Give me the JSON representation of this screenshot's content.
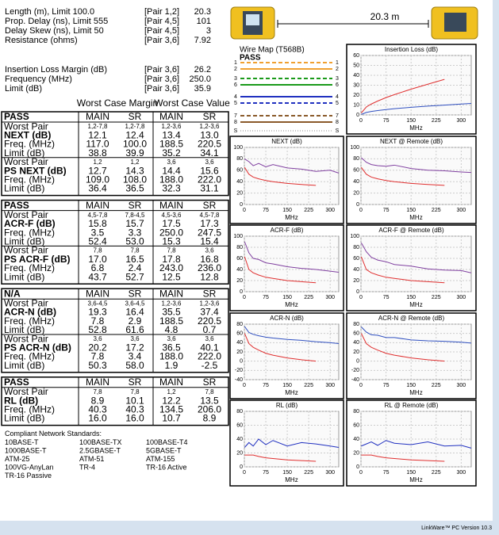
{
  "summary": {
    "rows": [
      [
        "Length (m), Limit 100.0",
        "[Pair 1,2]",
        "20.3"
      ],
      [
        "Prop. Delay (ns), Limit 555",
        "[Pair 4,5]",
        "101"
      ],
      [
        "Delay Skew (ns), Limit 50",
        "[Pair 4,5]",
        "3"
      ],
      [
        "Resistance (ohms)",
        "[Pair 3,6]",
        "7.92"
      ]
    ],
    "rows2": [
      [
        "Insertion Loss Margin (dB)",
        "[Pair 3,6]",
        "26.2"
      ],
      [
        "Frequency (MHz)",
        "[Pair 3,6]",
        "250.0"
      ],
      [
        "Limit (dB)",
        "[Pair 3,6]",
        "35.9"
      ]
    ]
  },
  "column_headers": [
    "Worst Case Margin",
    "Worst Case Value"
  ],
  "tables": [
    {
      "status": "PASS",
      "columns": [
        "MAIN",
        "SR",
        "MAIN",
        "SR"
      ],
      "groups": [
        [
          [
            "Worst Pair",
            "1,2-7,8",
            "1,2-7,8",
            "1,2-3,6",
            "1,2-3,6"
          ],
          [
            "NEXT (dB)",
            "12.1",
            "12.4",
            "13.4",
            "13.0"
          ],
          [
            "Freq. (MHz)",
            "117.0",
            "100.0",
            "188.5",
            "220.5"
          ],
          [
            "Limit (dB)",
            "38.8",
            "39.9",
            "35.2",
            "34.1"
          ]
        ],
        [
          [
            "Worst Pair",
            "1,2",
            "1,2",
            "3,6",
            "3,6"
          ],
          [
            "PS NEXT (dB)",
            "12.7",
            "14.3",
            "14.4",
            "15.6"
          ],
          [
            "Freq. (MHz)",
            "109.0",
            "108.0",
            "188.0",
            "222.0"
          ],
          [
            "Limit (dB)",
            "36.4",
            "36.5",
            "32.3",
            "31.1"
          ]
        ]
      ]
    },
    {
      "status": "PASS",
      "columns": [
        "MAIN",
        "SR",
        "MAIN",
        "SR"
      ],
      "groups": [
        [
          [
            "Worst Pair",
            "4,5-7,8",
            "7,8-4,5",
            "4,5-3,6",
            "4,5-7,8"
          ],
          [
            "ACR-F (dB)",
            "15.8",
            "15.7",
            "17.5",
            "17.3"
          ],
          [
            "Freq. (MHz)",
            "3.5",
            "3.3",
            "250.0",
            "247.5"
          ],
          [
            "Limit (dB)",
            "52.4",
            "53.0",
            "15.3",
            "15.4"
          ]
        ],
        [
          [
            "Worst Pair",
            "7,8",
            "7,8",
            "7,8",
            "3,6"
          ],
          [
            "PS ACR-F (dB)",
            "17.0",
            "16.5",
            "17.8",
            "16.8"
          ],
          [
            "Freq. (MHz)",
            "6.8",
            "2.4",
            "243.0",
            "236.0"
          ],
          [
            "Limit (dB)",
            "43.7",
            "52.7",
            "12.5",
            "12.8"
          ]
        ]
      ]
    },
    {
      "status": "N/A",
      "columns": [
        "MAIN",
        "SR",
        "MAIN",
        "SR"
      ],
      "groups": [
        [
          [
            "Worst Pair",
            "3,6-4,5",
            "3,6-4,5",
            "1,2-3,6",
            "1,2-3,6"
          ],
          [
            "ACR-N (dB)",
            "19.3",
            "16.4",
            "35.5",
            "37.4"
          ],
          [
            "Freq. (MHz)",
            "7.8",
            "2.9",
            "188.5",
            "220.5"
          ],
          [
            "Limit (dB)",
            "52.8",
            "61.6",
            "4.8",
            "0.7"
          ]
        ],
        [
          [
            "Worst Pair",
            "3,6",
            "3,6",
            "3,6",
            "3,6"
          ],
          [
            "PS ACR-N (dB)",
            "20.2",
            "17.2",
            "36.5",
            "40.1"
          ],
          [
            "Freq. (MHz)",
            "7.8",
            "3.4",
            "188.0",
            "222.0"
          ],
          [
            "Limit (dB)",
            "50.3",
            "58.0",
            "1.9",
            "-2.5"
          ]
        ]
      ]
    },
    {
      "status": "PASS",
      "columns": [
        "MAIN",
        "SR",
        "MAIN",
        "SR"
      ],
      "groups": [
        [
          [
            "Worst Pair",
            "7,8",
            "7,8",
            "1,2",
            "7,8"
          ],
          [
            "RL (dB)",
            "8.9",
            "10.1",
            "12.2",
            "13.5"
          ],
          [
            "Freq. (MHz)",
            "40.3",
            "40.3",
            "134.5",
            "206.0"
          ],
          [
            "Limit (dB)",
            "16.0",
            "16.0",
            "10.7",
            "8.9"
          ]
        ]
      ]
    }
  ],
  "standards": {
    "title": "Compliant Network Standards:",
    "items": [
      "10BASE-T",
      "100BASE-TX",
      "100BASE-T4",
      "1000BASE-T",
      "2.5GBASE-T",
      "5GBASE-T",
      "ATM-25",
      "ATM-51",
      "ATM-155",
      "100VG-AnyLan",
      "TR-4",
      "TR-16 Active",
      "TR-16 Passive"
    ]
  },
  "link": {
    "length": "20.3 m"
  },
  "wire_map": {
    "title": "Wire Map (T568B)",
    "status": "PASS",
    "pins": [
      {
        "left": "1",
        "right": "1",
        "color": "#f0a030",
        "dashed": true
      },
      {
        "left": "2",
        "right": "2",
        "color": "#f0a030",
        "dashed": false
      },
      {
        "left": "3",
        "right": "3",
        "color": "#1a9a1a",
        "dashed": true
      },
      {
        "left": "6",
        "right": "6",
        "color": "#1a9a1a",
        "dashed": false
      },
      {
        "left": "4",
        "right": "4",
        "color": "#2030c0",
        "dashed": false
      },
      {
        "left": "5",
        "right": "5",
        "color": "#2030c0",
        "dashed": true
      },
      {
        "left": "7",
        "right": "7",
        "color": "#8a5a2a",
        "dashed": true
      },
      {
        "left": "8",
        "right": "8",
        "color": "#8a5a2a",
        "dashed": false
      }
    ],
    "shield": [
      "S",
      "S"
    ]
  },
  "charts": [
    {
      "type": "line",
      "title": "Insertion Loss (dB)",
      "xlabel": "MHz",
      "xlim": [
        0,
        330
      ],
      "ylim": [
        0,
        60
      ],
      "xticks": [
        0,
        75,
        150,
        225,
        300
      ],
      "yticks": [
        0,
        10,
        20,
        30,
        40,
        50,
        60
      ],
      "x": [
        1,
        16,
        31,
        50,
        75,
        100,
        150,
        200,
        250,
        300,
        330
      ],
      "series": [
        {
          "color": "#e03030",
          "values": [
            2,
            8,
            11,
            14,
            17.5,
            20.5,
            26,
            31,
            35.9,
            null,
            null
          ]
        },
        {
          "color": "#3050c0",
          "values": [
            0.5,
            2.5,
            3.5,
            4.4,
            5.4,
            6.3,
            7.7,
            8.9,
            9.9,
            11,
            11.6
          ]
        }
      ]
    },
    {
      "type": "line",
      "title": "NEXT (dB)",
      "xlabel": "MHz",
      "xlim": [
        0,
        330
      ],
      "ylim": [
        0,
        100
      ],
      "xticks": [
        0,
        75,
        150,
        225,
        300
      ],
      "yticks": [
        0,
        20,
        40,
        60,
        80,
        100
      ],
      "x": [
        1,
        16,
        31,
        50,
        75,
        100,
        150,
        200,
        250,
        300,
        330
      ],
      "series": [
        {
          "color": "#e03030",
          "values": [
            65,
            53,
            48,
            45,
            42,
            40,
            37,
            35,
            33.5,
            null,
            null
          ]
        },
        {
          "color": "#8040a0",
          "values": [
            80,
            75,
            68,
            72,
            66,
            70,
            64,
            62,
            58,
            60,
            55
          ]
        }
      ]
    },
    {
      "type": "line",
      "title": "NEXT @ Remote (dB)",
      "xlabel": "MHz",
      "xlim": [
        0,
        330
      ],
      "ylim": [
        0,
        100
      ],
      "xticks": [
        0,
        75,
        150,
        225,
        300
      ],
      "yticks": [
        0,
        20,
        40,
        60,
        80,
        100
      ],
      "x": [
        1,
        16,
        31,
        50,
        75,
        100,
        150,
        200,
        250,
        300,
        330
      ],
      "series": [
        {
          "color": "#e03030",
          "values": [
            65,
            53,
            48,
            45,
            42,
            40,
            37,
            35,
            33.5,
            null,
            null
          ]
        },
        {
          "color": "#8040a0",
          "values": [
            82,
            74,
            70,
            68,
            67,
            69,
            63,
            60,
            59,
            57,
            56
          ]
        }
      ]
    },
    {
      "type": "line",
      "title": "ACR-F (dB)",
      "xlabel": "MHz",
      "xlim": [
        0,
        330
      ],
      "ylim": [
        0,
        100
      ],
      "xticks": [
        0,
        75,
        150,
        225,
        300
      ],
      "yticks": [
        0,
        20,
        40,
        60,
        80,
        100
      ],
      "x": [
        1,
        16,
        31,
        50,
        75,
        100,
        150,
        200,
        250,
        300,
        330
      ],
      "series": [
        {
          "color": "#e03030",
          "values": [
            63,
            40,
            34,
            30,
            26,
            24,
            20,
            18,
            16,
            null,
            null
          ]
        },
        {
          "color": "#8040a0",
          "values": [
            90,
            70,
            60,
            58,
            52,
            50,
            45,
            42,
            40,
            37,
            35
          ]
        }
      ]
    },
    {
      "type": "line",
      "title": "ACR-F @ Remote (dB)",
      "xlabel": "MHz",
      "xlim": [
        0,
        330
      ],
      "ylim": [
        0,
        100
      ],
      "xticks": [
        0,
        75,
        150,
        225,
        300
      ],
      "yticks": [
        0,
        20,
        40,
        60,
        80,
        100
      ],
      "x": [
        1,
        16,
        31,
        50,
        75,
        100,
        150,
        200,
        250,
        300,
        330
      ],
      "series": [
        {
          "color": "#e03030",
          "values": [
            63,
            40,
            34,
            30,
            26,
            24,
            20,
            18,
            16,
            null,
            null
          ]
        },
        {
          "color": "#8040a0",
          "values": [
            88,
            72,
            62,
            57,
            54,
            49,
            46,
            41,
            39,
            38,
            34
          ]
        }
      ]
    },
    {
      "type": "line",
      "title": "ACR-N (dB)",
      "xlabel": "MHz",
      "xlim": [
        0,
        330
      ],
      "ylim": [
        -40,
        80
      ],
      "xticks": [
        0,
        75,
        150,
        225,
        300
      ],
      "yticks": [
        -40,
        -20,
        0,
        20,
        40,
        60,
        80
      ],
      "x": [
        1,
        16,
        31,
        50,
        75,
        100,
        150,
        200,
        250,
        300,
        330
      ],
      "series": [
        {
          "color": "#e03030",
          "values": [
            60,
            38,
            30,
            24,
            17,
            13,
            7,
            3,
            0,
            null,
            null
          ]
        },
        {
          "color": "#3050c0",
          "values": [
            75,
            62,
            58,
            55,
            52,
            50,
            47,
            45,
            42,
            40,
            38
          ]
        }
      ]
    },
    {
      "type": "line",
      "title": "ACR-N @ Remote (dB)",
      "xlabel": "MHz",
      "xlim": [
        0,
        330
      ],
      "ylim": [
        -40,
        80
      ],
      "xticks": [
        0,
        75,
        150,
        225,
        300
      ],
      "yticks": [
        -40,
        -20,
        0,
        20,
        40,
        60,
        80
      ],
      "x": [
        1,
        16,
        31,
        50,
        75,
        100,
        150,
        200,
        250,
        300,
        330
      ],
      "series": [
        {
          "color": "#e03030",
          "values": [
            60,
            38,
            30,
            24,
            17,
            13,
            7,
            3,
            0,
            null,
            null
          ]
        },
        {
          "color": "#3050c0",
          "values": [
            74,
            63,
            57,
            56,
            51,
            51,
            46,
            44,
            43,
            41,
            39
          ]
        }
      ]
    },
    {
      "type": "line",
      "title": "RL (dB)",
      "xlabel": "MHz",
      "xlim": [
        0,
        330
      ],
      "ylim": [
        0,
        80
      ],
      "xticks": [
        0,
        75,
        150,
        225,
        300
      ],
      "yticks": [
        0,
        20,
        40,
        60,
        80
      ],
      "x": [
        1,
        16,
        31,
        50,
        75,
        100,
        150,
        200,
        250,
        300,
        330
      ],
      "series": [
        {
          "color": "#e03030",
          "values": [
            17,
            17,
            17,
            15,
            13,
            12,
            10,
            9,
            8,
            null,
            null
          ]
        },
        {
          "color": "#2030c0",
          "values": [
            28,
            35,
            30,
            40,
            32,
            38,
            30,
            35,
            33,
            30,
            28
          ]
        }
      ]
    },
    {
      "type": "line",
      "title": "RL @ Remote (dB)",
      "xlabel": "MHz",
      "xlim": [
        0,
        330
      ],
      "ylim": [
        0,
        80
      ],
      "xticks": [
        0,
        75,
        150,
        225,
        300
      ],
      "yticks": [
        0,
        20,
        40,
        60,
        80
      ],
      "x": [
        1,
        16,
        31,
        50,
        75,
        100,
        150,
        200,
        250,
        300,
        330
      ],
      "series": [
        {
          "color": "#e03030",
          "values": [
            17,
            17,
            17,
            15,
            13,
            12,
            10,
            9,
            8,
            null,
            null
          ]
        },
        {
          "color": "#2030c0",
          "values": [
            30,
            33,
            36,
            31,
            38,
            34,
            32,
            36,
            30,
            31,
            27
          ]
        }
      ]
    }
  ],
  "footer": "LinkWare™ PC Version 10.3"
}
